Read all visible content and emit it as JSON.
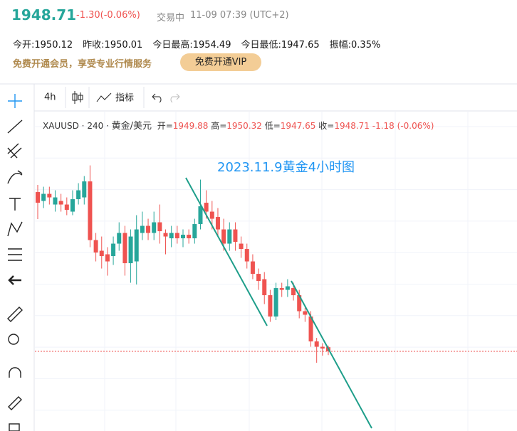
{
  "header": {
    "price": "1948.71",
    "change": "-1.30(-0.06%)",
    "status": "交易中",
    "time": "11-09 07:39 (UTC+2)"
  },
  "stats": [
    {
      "label": "今开:",
      "value": "1950.12"
    },
    {
      "label": "昨收:",
      "value": "1950.01"
    },
    {
      "label": "今日最高:",
      "value": "1954.49"
    },
    {
      "label": "今日最低:",
      "value": "1947.65"
    },
    {
      "label": "振幅:",
      "value": "0.35%"
    }
  ],
  "promo": {
    "text": "免费开通会员，享受专业行情服务",
    "button": "免费开通VIP"
  },
  "toolbar": {
    "interval": "4h",
    "indicators": "指标"
  },
  "legend": {
    "symbol": "XAUUSD",
    "interval": "240",
    "name": "黄金/美元",
    "open_label": "开=",
    "high_label": "高=",
    "low_label": "低=",
    "close_label": "收=",
    "change": "-1.18",
    "change_pct": "(-0.06%)"
  },
  "chart_data": {
    "type": "candlestick",
    "title": "2023.11.9黄金4小时图",
    "up_color": "#26a69a",
    "down_color": "#ef5350",
    "open": [
      1993.5,
      1991,
      1993,
      1990,
      1991,
      1990,
      1988,
      1991.5,
      1992,
      1996.5,
      1980,
      1977,
      1976,
      1975.5,
      1979,
      1982,
      1973.5,
      1974,
      1982,
      1984,
      1982,
      1985,
      1982,
      1980.5,
      1982,
      1980.5,
      1981.5,
      1980.5,
      1984.5,
      1990.5,
      1988,
      1986.5,
      1983,
      1979,
      1983,
      1979,
      1977.5,
      1974,
      1970.5,
      1969,
      1964.5,
      1958.5,
      1966.5,
      1966,
      1966.5,
      1964.5,
      1960,
      1958.5,
      1951.5,
      1950,
      1949.88
    ],
    "high": [
      1995.5,
      1995,
      1995,
      1994,
      1993,
      1992,
      1994,
      1996,
      1998,
      2001,
      1982,
      1981,
      1978,
      1981,
      1985,
      1984,
      1983,
      1987,
      1988,
      1986,
      1988,
      1990,
      1983,
      1984,
      1984,
      1983,
      1983,
      1986,
      1997,
      1994,
      1991,
      1989,
      1986,
      1985,
      1985,
      1981,
      1979,
      1976,
      1972,
      1971,
      1966,
      1968,
      1968,
      1969,
      1968,
      1966,
      1961,
      1960,
      1952.5,
      1951,
      1950.32
    ],
    "low": [
      1985.9,
      1989,
      1990,
      1988,
      1988,
      1987,
      1987,
      1990,
      1990,
      1978,
      1974,
      1972,
      1970,
      1973,
      1977,
      1970,
      1968,
      1967.5,
      1980,
      1980,
      1980,
      1979,
      1976,
      1978,
      1979,
      1978,
      1979,
      1979,
      1983,
      1986,
      1983,
      1981,
      1977,
      1977,
      1977,
      1975,
      1972,
      1969,
      1966,
      1962,
      1957,
      1957.5,
      1964,
      1964,
      1963,
      1958,
      1957,
      1950,
      1945.5,
      1947.5,
      1947.65
    ],
    "close": [
      1990.5,
      1993,
      1992,
      1992,
      1990,
      1988.5,
      1991.5,
      1994,
      1996.5,
      1980,
      1976.5,
      1975.5,
      1974,
      1979,
      1982,
      1973.5,
      1981,
      1983,
      1984,
      1982,
      1985,
      1982.5,
      1981,
      1982,
      1980.5,
      1981.5,
      1980.5,
      1984.5,
      1989.5,
      1988,
      1986,
      1983,
      1979,
      1983,
      1979.5,
      1977.5,
      1974,
      1970.5,
      1968.5,
      1964.5,
      1958.5,
      1966.5,
      1966,
      1967,
      1964.5,
      1960,
      1959,
      1951.5,
      1950,
      1949.5,
      1948.71
    ]
  }
}
